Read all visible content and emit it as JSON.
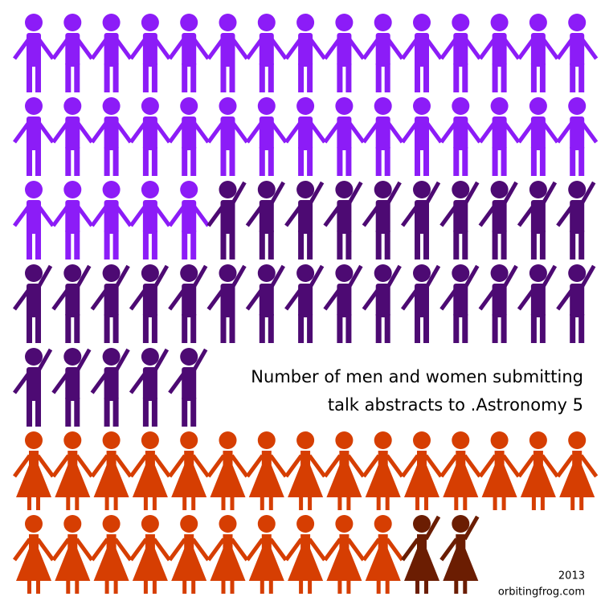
{
  "chart_data": {
    "type": "pictogram",
    "title_lines": [
      "Number of men and women submitting",
      "talk abstracts to .Astronomy 5"
    ],
    "footer": [
      "2013",
      "orbitingfrog.com"
    ],
    "per_row": 15,
    "series": [
      {
        "figure": "man",
        "raised_arm": false,
        "color": "#8c1cf7",
        "values": [
          35
        ]
      },
      {
        "figure": "man",
        "raised_arm": true,
        "color": "#4d0a73",
        "values": [
          30
        ]
      },
      {
        "figure": "woman",
        "raised_arm": false,
        "color": "#d63e02",
        "values": [
          25
        ]
      },
      {
        "figure": "woman",
        "raised_arm": true,
        "color": "#6b1d02",
        "values": [
          2
        ]
      }
    ]
  }
}
